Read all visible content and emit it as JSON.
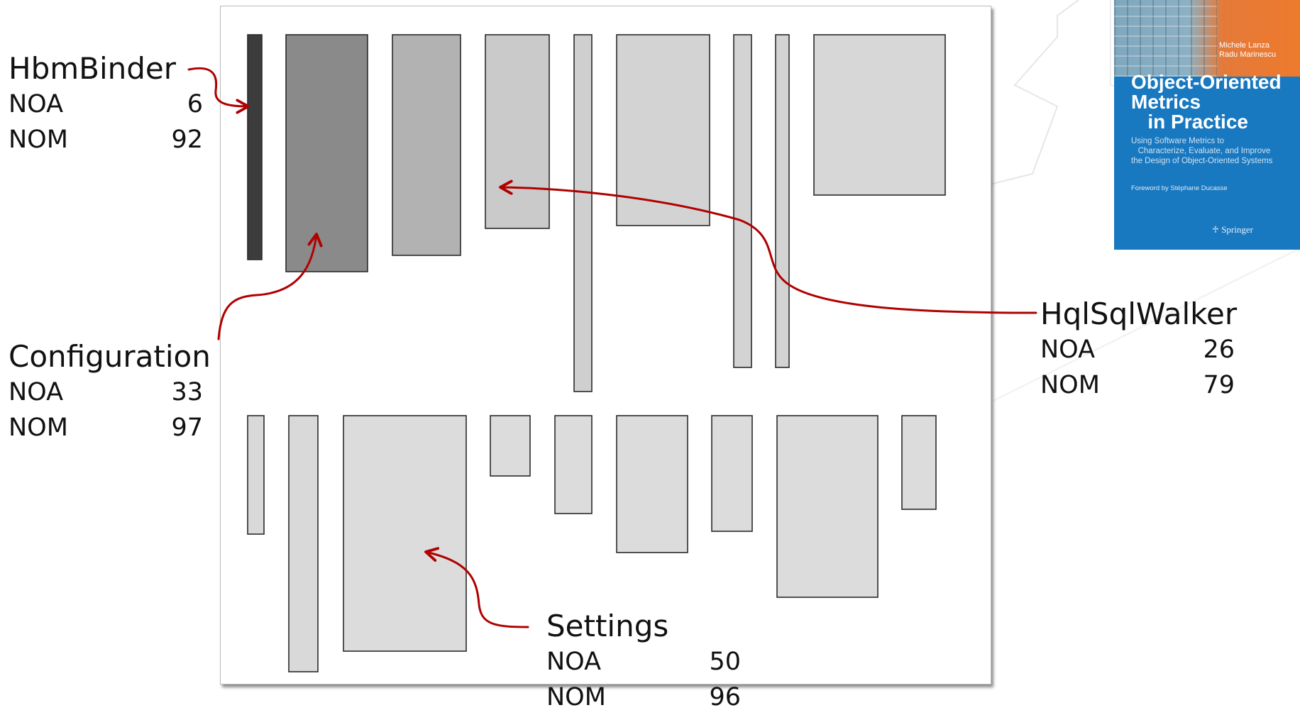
{
  "colors": {
    "arrow": "#b00000",
    "box_border": "#2a2a2a",
    "panel_border": "#b9b9b9",
    "book_blue": "#1878c0",
    "book_orange": "#ee7a2c"
  },
  "callouts": {
    "hbmbinder": {
      "name": "HbmBinder",
      "noa_label": "NOA",
      "noa": "6",
      "nom_label": "NOM",
      "nom": "92"
    },
    "configuration": {
      "name": "Configuration",
      "noa_label": "NOA",
      "noa": "33",
      "nom_label": "NOM",
      "nom": "97"
    },
    "hqlsqlwalker": {
      "name": "HqlSqlWalker",
      "noa_label": "NOA",
      "noa": "26",
      "nom_label": "NOM",
      "nom": "79"
    },
    "settings": {
      "name": "Settings",
      "noa_label": "NOA",
      "noa": "50",
      "nom_label": "NOM",
      "nom": "96"
    }
  },
  "book": {
    "authors": [
      "Michele Lanza",
      "Radu Marinescu"
    ],
    "title": "Object-Oriented\nMetrics\n   in Practice",
    "subtitle": "Using Software Metrics to\n   Characterize, Evaluate, and Improve\nthe Design of Object-Oriented Systems",
    "foreword": "Foreword by Stéphane Ducasse",
    "publisher": "Springer"
  }
}
